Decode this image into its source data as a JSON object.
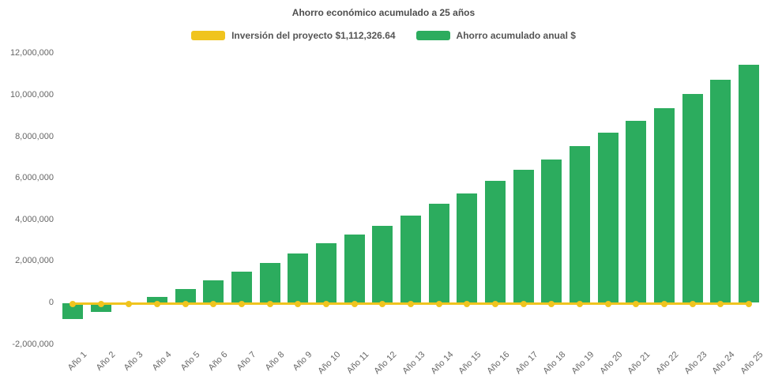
{
  "title": "Ahorro económico acumulado a 25 años",
  "legend": {
    "items": [
      {
        "label": "Inversión del proyecto $1,112,326.64",
        "color": "#F0C41E"
      },
      {
        "label": "Ahorro acumulado anual $",
        "color": "#2CAC5E"
      }
    ]
  },
  "chart_data": {
    "type": "bar",
    "title": "Ahorro económico acumulado a 25 años",
    "categories": [
      "Año 1",
      "Año 2",
      "Año 3",
      "Año 4",
      "Año 5",
      "Año 6",
      "Año 7",
      "Año 8",
      "Año 9",
      "Año 10",
      "Año 11",
      "Año 12",
      "Año 13",
      "Año 14",
      "Año 15",
      "Año 16",
      "Año 17",
      "Año 18",
      "Año 19",
      "Año 20",
      "Año 21",
      "Año 22",
      "Año 23",
      "Año 24",
      "Año 25"
    ],
    "series": [
      {
        "name": "Ahorro acumulado anual $",
        "type": "column",
        "color": "#2CAC5E",
        "values": [
          -780000,
          -440000,
          -80000,
          290000,
          680000,
          1100000,
          1500000,
          1920000,
          2370000,
          2880000,
          3300000,
          3720000,
          4210000,
          4760000,
          5270000,
          5870000,
          6420000,
          6920000,
          7550000,
          8200000,
          8780000,
          9390000,
          10070000,
          10760000,
          11480000
        ]
      },
      {
        "name": "Inversión del proyecto $1,112,326.64",
        "type": "line",
        "color": "#F0C41E",
        "marker": "circle",
        "values": [
          0,
          0,
          0,
          0,
          0,
          0,
          0,
          0,
          0,
          0,
          0,
          0,
          0,
          0,
          0,
          0,
          0,
          0,
          0,
          0,
          0,
          0,
          0,
          0,
          0
        ]
      }
    ],
    "ytick_labels": [
      "12,000,000",
      "10,000,000",
      "8,000,000",
      "6,000,000",
      "4,000,000",
      "2,000,000",
      "0",
      "-2,000,000"
    ],
    "ytick_values": [
      12000000,
      10000000,
      8000000,
      6000000,
      4000000,
      2000000,
      0,
      -2000000
    ],
    "ylim": [
      -2000000,
      12000000
    ],
    "xlabel": "",
    "ylabel": "",
    "grid": false,
    "legend_position": "top"
  }
}
